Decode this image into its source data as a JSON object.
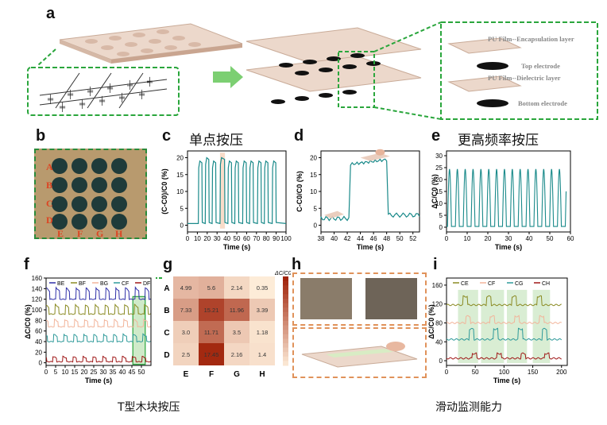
{
  "panel_labels": {
    "a": "a",
    "b": "b",
    "c": "c",
    "d": "d",
    "e": "e",
    "f": "f",
    "g": "g",
    "h": "h",
    "i": "i"
  },
  "panel_a": {
    "layers": [
      "PU Film--Encapsulation layer",
      "Top electrode",
      "PU Film--Dielectric layer",
      "Bottom electrode"
    ]
  },
  "panel_b": {
    "rows": [
      "A",
      "B",
      "C",
      "D"
    ],
    "cols": [
      "E",
      "F",
      "G",
      "H"
    ]
  },
  "titles": {
    "c": "单点按压",
    "e": "更高频率按压"
  },
  "captions": {
    "left": "T型木块按压",
    "right": "滑动监测能力"
  },
  "colors": {
    "teal": "#1a8a8a",
    "peach": "#f5c9a9",
    "green_dash": "#2aa63c",
    "orange_dash": "#e0925a"
  },
  "chart_data": [
    {
      "panel": "c",
      "type": "line",
      "xlabel": "Time (s)",
      "ylabel": "(C-C0)/C0 (%)",
      "xlim": [
        0,
        100
      ],
      "ylim": [
        -2,
        22
      ],
      "xticks": [
        "0",
        "10",
        "20",
        "30",
        "40",
        "50",
        "60",
        "70",
        "80",
        "90",
        "100"
      ],
      "yticks": [
        "0",
        "5",
        "10",
        "15",
        "20"
      ],
      "pulses": [
        [
          11,
          15,
          19
        ],
        [
          18,
          22,
          20
        ],
        [
          25,
          29,
          19
        ],
        [
          33,
          38,
          20
        ],
        [
          41,
          45,
          19
        ],
        [
          48,
          52,
          19
        ],
        [
          56,
          60,
          19
        ],
        [
          63,
          67,
          19
        ],
        [
          71,
          75,
          19
        ],
        [
          78,
          82,
          19
        ],
        [
          86,
          90,
          19
        ]
      ],
      "highlight": [
        33,
        38
      ]
    },
    {
      "panel": "d",
      "type": "line",
      "xlabel": "Time (s)",
      "ylabel": "C-C0/C0 (%)",
      "xlim": [
        38,
        53
      ],
      "ylim": [
        -2,
        22
      ],
      "xticks": [
        "38",
        "40",
        "42",
        "44",
        "46",
        "48",
        "50",
        "52"
      ],
      "yticks": [
        "0",
        "5",
        "10",
        "15",
        "20"
      ],
      "step": {
        "rise": 42.3,
        "fall": 48.1,
        "low": 2,
        "high": 18
      }
    },
    {
      "panel": "e",
      "type": "line",
      "xlabel": "Time (s)",
      "ylabel": "ΔC/C0 (%)",
      "xlim": [
        0,
        60
      ],
      "ylim": [
        -2,
        32
      ],
      "xticks": [
        "0",
        "10",
        "20",
        "30",
        "40",
        "50",
        "60"
      ],
      "yticks": [
        "0",
        "5",
        "10",
        "15",
        "20",
        "25",
        "30"
      ],
      "period": 3.8,
      "amplitude": 24
    },
    {
      "panel": "f",
      "type": "line",
      "xlabel": "Time (s)",
      "ylabel": "ΔC/C0 (%)",
      "xlim": [
        0,
        55
      ],
      "ylim": [
        -5,
        160
      ],
      "xticks": [
        "0",
        "5",
        "10",
        "15",
        "20",
        "25",
        "30",
        "35",
        "40",
        "45",
        "50"
      ],
      "yticks": [
        "0",
        "20",
        "40",
        "60",
        "80",
        "100",
        "120",
        "140",
        "160"
      ],
      "series": [
        {
          "name": "BE",
          "color": "#2f2fa8",
          "base": 120,
          "amp": 22
        },
        {
          "name": "BF",
          "color": "#8a8a22",
          "base": 92,
          "amp": 18
        },
        {
          "name": "BG",
          "color": "#f2b49a",
          "base": 68,
          "amp": 14
        },
        {
          "name": "CF",
          "color": "#2e9a9a",
          "base": 40,
          "amp": 14
        },
        {
          "name": "DF",
          "color": "#a01818",
          "base": 2,
          "amp": 10
        }
      ]
    },
    {
      "panel": "g",
      "type": "heatmap",
      "rows": [
        "A",
        "B",
        "C",
        "D"
      ],
      "cols": [
        "E",
        "F",
        "G",
        "H"
      ],
      "values": [
        [
          4.99,
          5.6,
          2.14,
          0.35
        ],
        [
          7.33,
          15.21,
          11.96,
          3.39
        ],
        [
          3.0,
          11.71,
          3.5,
          1.18
        ],
        [
          2.5,
          17.45,
          2.16,
          1.4
        ]
      ],
      "labels": [
        [
          "4.99",
          "5.6",
          "2.14",
          "0.35"
        ],
        [
          "7.33",
          "15.21",
          "11.96",
          "3.39"
        ],
        [
          "3.0",
          "11.71",
          "3.5",
          "1.18"
        ],
        [
          "2.5",
          "17.45",
          "2.16",
          "1.4"
        ]
      ],
      "colorbar_title": "ΔC/C0(%)",
      "colorbar_ticks": [
        "16",
        "14",
        "12",
        "10",
        "8",
        "6",
        "4",
        "2"
      ],
      "vmin": 0,
      "vmax": 18
    },
    {
      "panel": "i",
      "type": "line",
      "xlabel": "Time (s)",
      "ylabel": "ΔC/C0 (%)",
      "xlim": [
        0,
        210
      ],
      "ylim": [
        -10,
        175
      ],
      "xticks": [
        "0",
        "50",
        "100",
        "150",
        "200"
      ],
      "yticks": [
        "0",
        "40",
        "80",
        "120",
        "160"
      ],
      "bands": [
        [
          20,
          55
        ],
        [
          60,
          100
        ],
        [
          105,
          140
        ],
        [
          150,
          180
        ]
      ],
      "series": [
        {
          "name": "CE",
          "color": "#8a8a22",
          "base": 118,
          "amp": 18
        },
        {
          "name": "CF",
          "color": "#f2b49a",
          "base": 80,
          "amp": 14
        },
        {
          "name": "CG",
          "color": "#2e9a9a",
          "base": 45,
          "amp": 22
        },
        {
          "name": "CH",
          "color": "#a01818",
          "base": 5,
          "amp": 10
        }
      ]
    }
  ]
}
